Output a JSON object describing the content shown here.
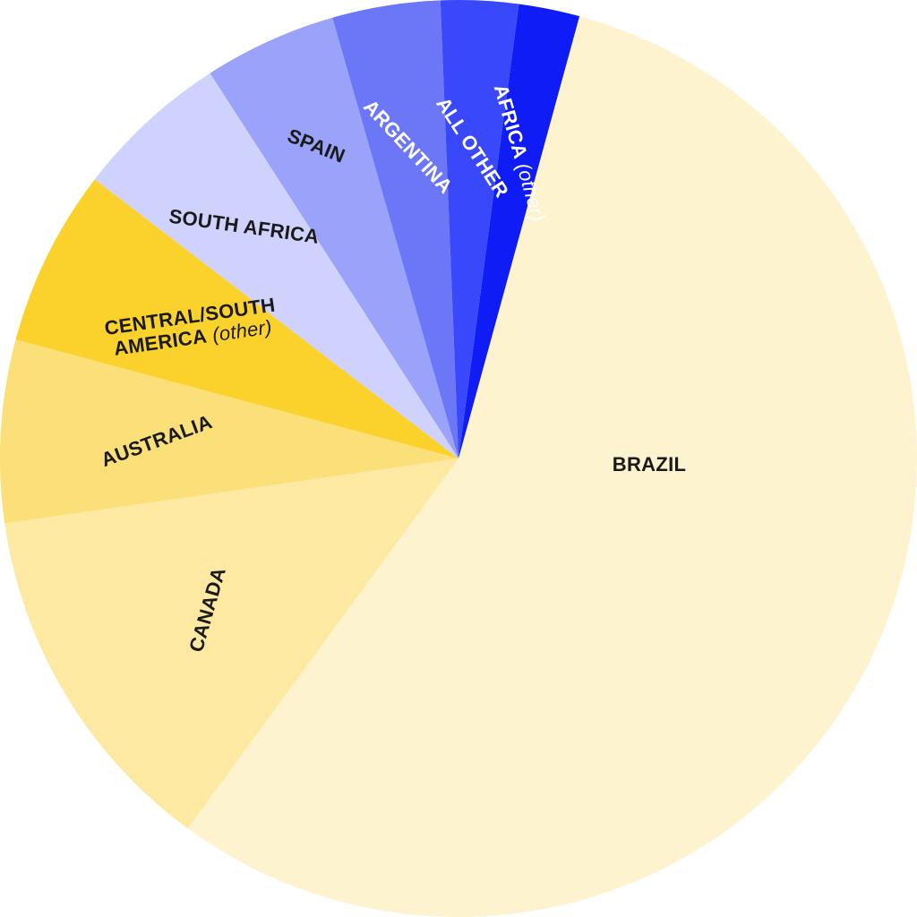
{
  "chart_data": {
    "type": "pie",
    "title": "",
    "start_angle_deg": 0,
    "direction": "clockwise",
    "slices": [
      {
        "label": "BRAZIL",
        "label_note": "",
        "value": 57.2,
        "color": "#fdf3cf",
        "text_color": "#1a1a1a"
      },
      {
        "label": "CANADA",
        "label_note": "",
        "value": 13.0,
        "color": "#fde9a1",
        "text_color": "#1a1a1a"
      },
      {
        "label": "AUSTRALIA",
        "label_note": "",
        "value": 6.6,
        "color": "#fbe07a",
        "text_color": "#1a1a1a"
      },
      {
        "label": "CENTRAL/SOUTH AMERICA",
        "label_note": "(other)",
        "value": 6.4,
        "color": "#fbd22c",
        "text_color": "#1a1a1a"
      },
      {
        "label": "SOUTH AFRICA",
        "label_note": "",
        "value": 5.6,
        "color": "#cfd2fc",
        "text_color": "#1a1a1a"
      },
      {
        "label": "SPAIN",
        "label_note": "",
        "value": 4.8,
        "color": "#9aa2fa",
        "text_color": "#1a1a1a"
      },
      {
        "label": "ARGENTINA",
        "label_note": "",
        "value": 3.9,
        "color": "#6b77f7",
        "text_color": "#ffffff"
      },
      {
        "label": "ALL OTHER",
        "label_note": "",
        "value": 2.8,
        "color": "#3a48fb",
        "text_color": "#ffffff"
      },
      {
        "label": "AFRICA",
        "label_note": "(other)",
        "value": 2.2,
        "color": "#0f1cf5",
        "text_color": "#ffffff"
      }
    ]
  }
}
